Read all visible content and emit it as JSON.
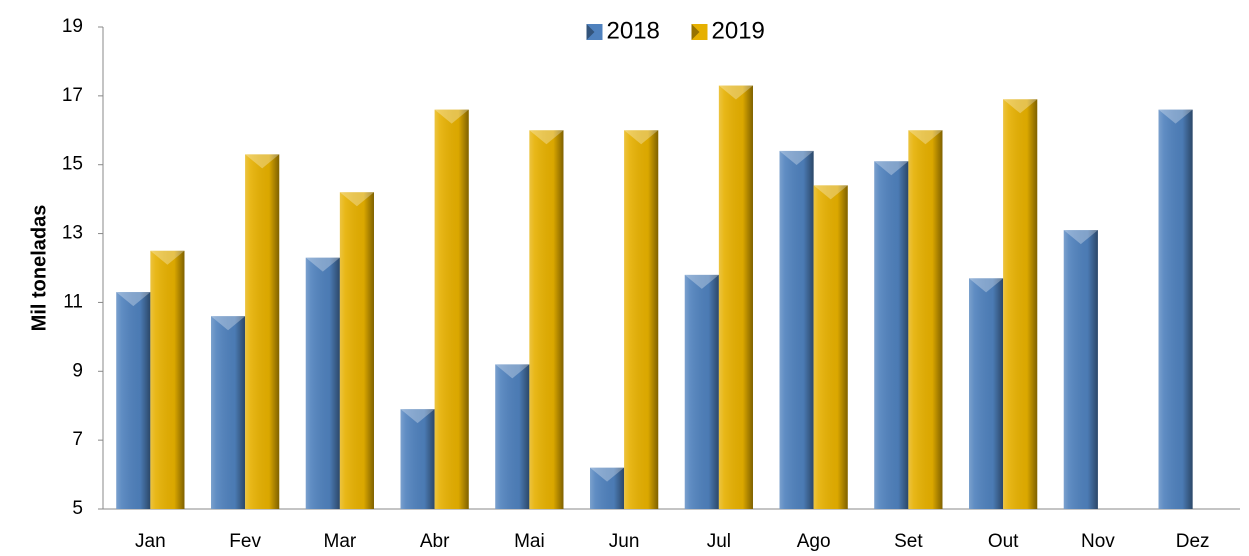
{
  "chart_data": {
    "type": "bar",
    "y_label": "Mil toneladas",
    "categories": [
      "Jan",
      "Fev",
      "Mar",
      "Abr",
      "Mai",
      "Jun",
      "Jul",
      "Ago",
      "Set",
      "Out",
      "Nov",
      "Dez"
    ],
    "series": [
      {
        "name": "2018",
        "color": "#4f81bd",
        "values": [
          11.3,
          10.6,
          12.3,
          7.9,
          9.2,
          6.2,
          11.8,
          15.4,
          15.1,
          11.7,
          13.1,
          16.6
        ]
      },
      {
        "name": "2019",
        "color": "#e6b000",
        "values": [
          12.5,
          15.3,
          14.2,
          16.6,
          16.0,
          16.0,
          17.3,
          14.4,
          16.0,
          16.9,
          null,
          null
        ]
      }
    ],
    "ylim": [
      5,
      19
    ],
    "yticks": [
      5,
      7,
      9,
      11,
      13,
      15,
      17,
      19
    ],
    "grid": false,
    "legend": "top"
  }
}
